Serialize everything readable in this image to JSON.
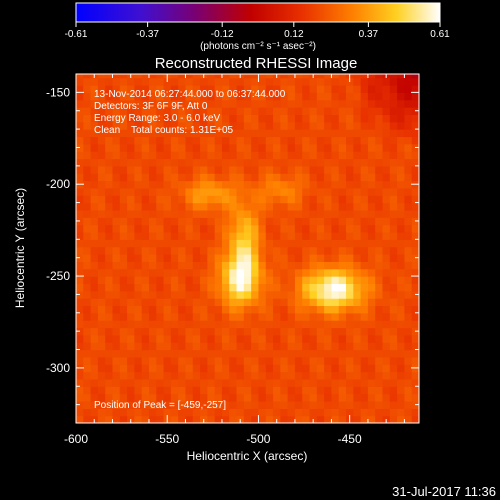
{
  "chart_data": {
    "type": "heatmap",
    "title": "Reconstructed RHESSI Image",
    "xlabel": "Heliocentric X (arcsec)",
    "ylabel": "Heliocentric Y (arcsec)",
    "xlim": [
      -600,
      -412
    ],
    "ylim": [
      -330,
      -140
    ],
    "x_ticks": [
      -600,
      -550,
      -500,
      -450
    ],
    "y_ticks": [
      -300,
      -250,
      -200,
      -150
    ],
    "colorbar": {
      "ticks": [
        "-0.61",
        "-0.37",
        "-0.12",
        "0.12",
        "0.37",
        "0.61"
      ],
      "min": -0.61,
      "max": 0.61,
      "units_label": "(photons cm⁻² s⁻¹ asec⁻²)"
    },
    "annotations": [
      "13-Nov-2014 06:27:44.000 to 06:37:44.000",
      "Detectors: 3F 6F 9F, Att 0",
      "Energy Range: 3.0 - 6.0 keV",
      "Clean    Total counts: 1.31E+05"
    ],
    "peak_label": "Position of Peak = [-459,-257]",
    "sources": [
      {
        "x": -459,
        "y": -257,
        "peak": 0.61,
        "sx": 12,
        "sy": 8
      },
      {
        "x": -510,
        "y": -252,
        "peak": 0.55,
        "sx": 8,
        "sy": 10
      },
      {
        "x": -508,
        "y": -230,
        "peak": 0.45,
        "sx": 6,
        "sy": 14
      },
      {
        "x": -527,
        "y": -205,
        "peak": 0.38,
        "sx": 10,
        "sy": 6
      },
      {
        "x": -488,
        "y": -203,
        "peak": 0.33,
        "sx": 9,
        "sy": 6
      }
    ],
    "background_level": 0.2
  },
  "footer": {
    "date": "31-Jul-2017 11:36"
  }
}
